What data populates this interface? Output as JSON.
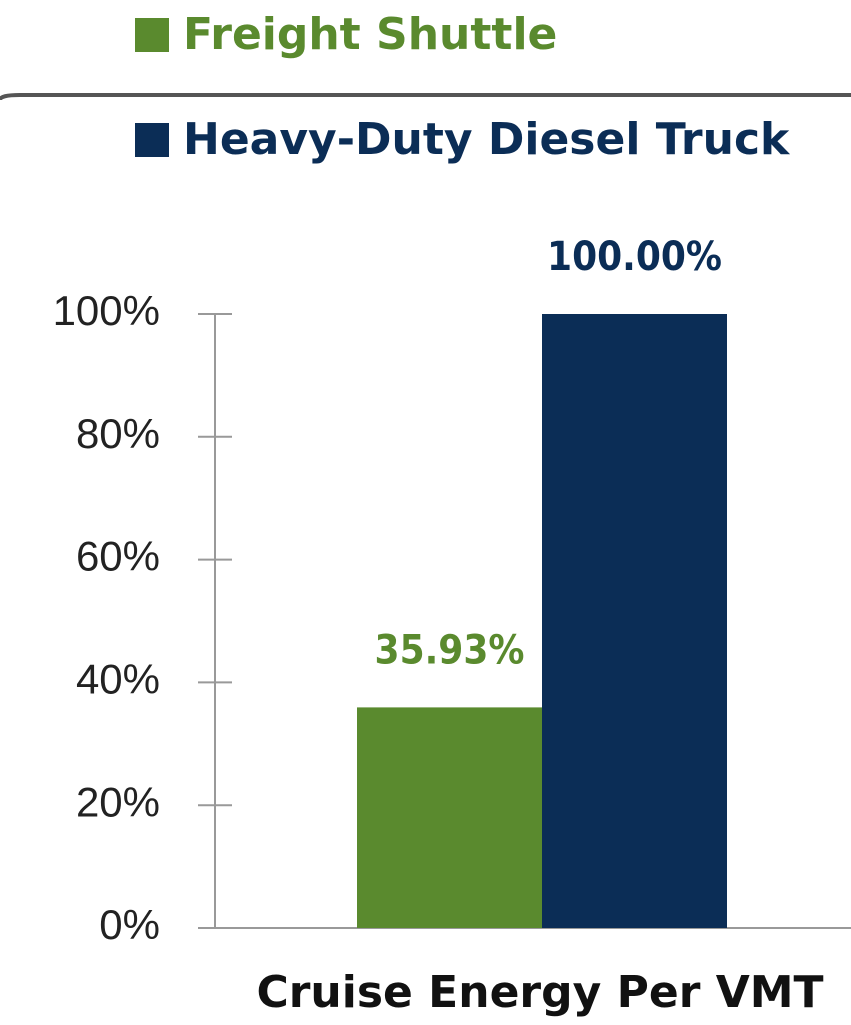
{
  "chart_data": {
    "type": "bar",
    "categories": [
      "Cruise Energy Per VMT"
    ],
    "series": [
      {
        "name": "Freight Shuttle",
        "color": "#5a8a2e",
        "values": [
          35.93
        ],
        "value_labels": [
          "35.93%"
        ]
      },
      {
        "name": "Heavy-Duty Diesel Truck",
        "color": "#0b2d56",
        "values": [
          100
        ],
        "value_labels": [
          "100.00%"
        ]
      }
    ],
    "ylim": [
      0,
      100
    ],
    "yticks": [
      {
        "value": 0,
        "label": "0%"
      },
      {
        "value": 20,
        "label": "20%"
      },
      {
        "value": 40,
        "label": "40%"
      },
      {
        "value": 60,
        "label": "60%"
      },
      {
        "value": 80,
        "label": "80%"
      },
      {
        "value": 100,
        "label": "100%"
      }
    ]
  }
}
